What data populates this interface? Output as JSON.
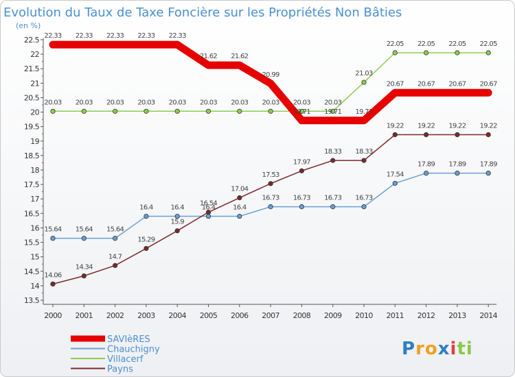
{
  "chart_data": {
    "type": "line",
    "title": "Evolution du Taux de Taxe Foncière sur les Propriétés Non Bâties",
    "subtitle": "(en %)",
    "x": [
      "2000",
      "2001",
      "2002",
      "2003",
      "2004",
      "2005",
      "2006",
      "2007",
      "2008",
      "2009",
      "2010",
      "2011",
      "2012",
      "2013",
      "2014"
    ],
    "ylim": [
      13.5,
      22.5
    ],
    "yticks": [
      "13.5",
      "14",
      "14.5",
      "15",
      "15.5",
      "16",
      "16.5",
      "17",
      "17.5",
      "18",
      "18.5",
      "19",
      "19.5",
      "20",
      "20.5",
      "21",
      "21.5",
      "22",
      "22.5"
    ],
    "grid": false,
    "legend_position": "bottom-left",
    "series": [
      {
        "name": "SAVIèRES",
        "color": "#e60000",
        "width": "thick",
        "values": [
          22.33,
          22.33,
          22.33,
          22.33,
          22.33,
          21.62,
          21.62,
          20.99,
          19.71,
          19.71,
          19.71,
          20.67,
          20.67,
          20.67,
          20.67
        ],
        "labels": [
          "22.33",
          "22.33",
          "22.33",
          "22.33",
          "22.33",
          "21.62",
          "21.62",
          "20.99",
          "19.71",
          "19.71",
          "19.71",
          "20.67",
          "20.67",
          "20.67",
          "20.67"
        ]
      },
      {
        "name": "Chauchigny",
        "color": "#6aa0d4",
        "width": "thin",
        "values": [
          15.64,
          15.64,
          15.64,
          16.4,
          16.4,
          16.4,
          16.4,
          16.73,
          16.73,
          16.73,
          16.73,
          17.54,
          17.89,
          17.89,
          17.89
        ],
        "labels": [
          "15.64",
          "15.64",
          "15.64",
          "16.4",
          "16.4",
          "16.4",
          "16.4",
          "16.73",
          "16.73",
          "16.73",
          "16.73",
          "17.54",
          "17.89",
          "17.89",
          "17.89"
        ]
      },
      {
        "name": "Villacerf",
        "color": "#8ccd52",
        "width": "thin",
        "values": [
          20.03,
          20.03,
          20.03,
          20.03,
          20.03,
          20.03,
          20.03,
          20.03,
          20.03,
          20.03,
          21.03,
          22.05,
          22.05,
          22.05,
          22.05
        ],
        "labels": [
          "20.03",
          "20.03",
          "20.03",
          "20.03",
          "20.03",
          "20.03",
          "20.03",
          "20.03",
          "20.03",
          "20.03",
          "21.03",
          "22.05",
          "22.05",
          "22.05",
          "22.05"
        ]
      },
      {
        "name": "Payns",
        "color": "#7a2a2a",
        "width": "thin",
        "values": [
          14.06,
          14.34,
          14.7,
          15.29,
          15.9,
          16.54,
          17.04,
          17.53,
          17.97,
          18.33,
          18.33,
          19.22,
          19.22,
          19.22,
          19.22
        ],
        "labels": [
          "14.06",
          "14.34",
          "14.7",
          "15.29",
          "15.9",
          "16.54",
          "17.04",
          "17.53",
          "17.97",
          "18.33",
          "18.33",
          "19.22",
          "19.22",
          "19.22",
          "19.22"
        ]
      }
    ]
  },
  "brand": {
    "letters": [
      "P",
      "r",
      "o",
      "x",
      "i",
      "t",
      "i"
    ],
    "colors": [
      "#2f7fc1",
      "#f0a020",
      "#f0a020",
      "#2f7fc1",
      "#e04040",
      "#8cc84b",
      "#8cc84b"
    ]
  }
}
